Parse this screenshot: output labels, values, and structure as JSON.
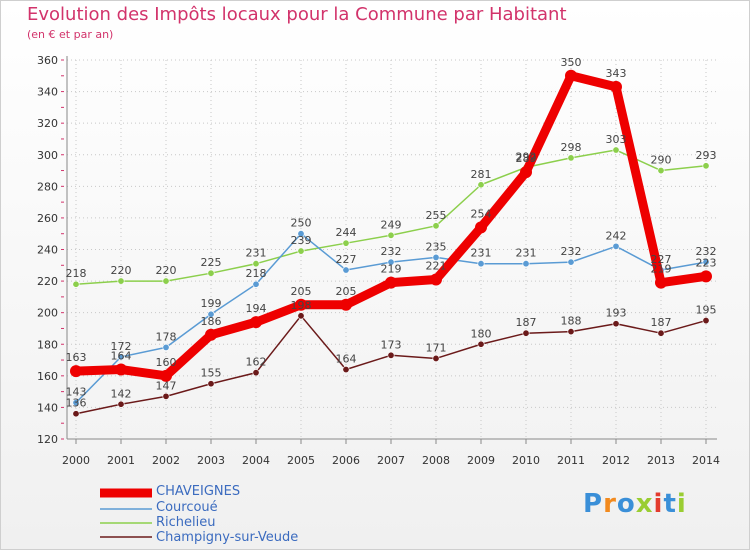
{
  "header": {
    "title": "Evolution des Impôts locaux pour la Commune par Habitant",
    "subtitle": "(en € et par an)"
  },
  "chart_data": {
    "type": "line",
    "title": "Evolution des Impôts locaux pour la Commune par Habitant",
    "subtitle": "(en € et par an)",
    "xlabel": "",
    "ylabel": "",
    "x": [
      "2000",
      "2001",
      "2002",
      "2003",
      "2004",
      "2005",
      "2006",
      "2007",
      "2008",
      "2009",
      "2010",
      "2011",
      "2012",
      "2013",
      "2014"
    ],
    "ylim": [
      120,
      360
    ],
    "yticks": [
      120,
      140,
      160,
      180,
      200,
      220,
      240,
      260,
      280,
      300,
      320,
      340,
      360
    ],
    "grid": true,
    "legend_position": "bottom-left",
    "series": [
      {
        "name": "Champigny-sur-Veude",
        "color": "#6b1a1a",
        "values": [
          136,
          142,
          147,
          155,
          162,
          198,
          164,
          173,
          171,
          180,
          187,
          188,
          193,
          187,
          195
        ]
      },
      {
        "name": "Richelieu",
        "color": "#8ccf4c",
        "values": [
          218,
          220,
          220,
          225,
          231,
          239,
          244,
          249,
          255,
          281,
          292,
          298,
          303,
          290,
          293
        ]
      },
      {
        "name": "Courcoué",
        "color": "#5a9bd4",
        "values": [
          143,
          172,
          178,
          199,
          218,
          250,
          227,
          232,
          235,
          231,
          231,
          232,
          242,
          227,
          232
        ]
      },
      {
        "name": "CHAVEIGNES",
        "color": "#ee0000",
        "values": [
          163,
          164,
          160,
          186,
          194,
          205,
          205,
          219,
          221,
          254,
          289,
          350,
          343,
          219,
          223
        ]
      }
    ]
  },
  "legend": {
    "items": [
      "CHAVEIGNES",
      "Courcoué",
      "Richelieu",
      "Champigny-sur-Veude"
    ]
  },
  "branding": {
    "logo_letters": [
      "P",
      "r",
      "o",
      "x",
      "i",
      "t",
      "i"
    ],
    "logo_colors": [
      "#3a8fd8",
      "#f28a1e",
      "#3a8fd8",
      "#9acd32",
      "#e33b2e",
      "#3a8fd8",
      "#9acd32"
    ]
  }
}
